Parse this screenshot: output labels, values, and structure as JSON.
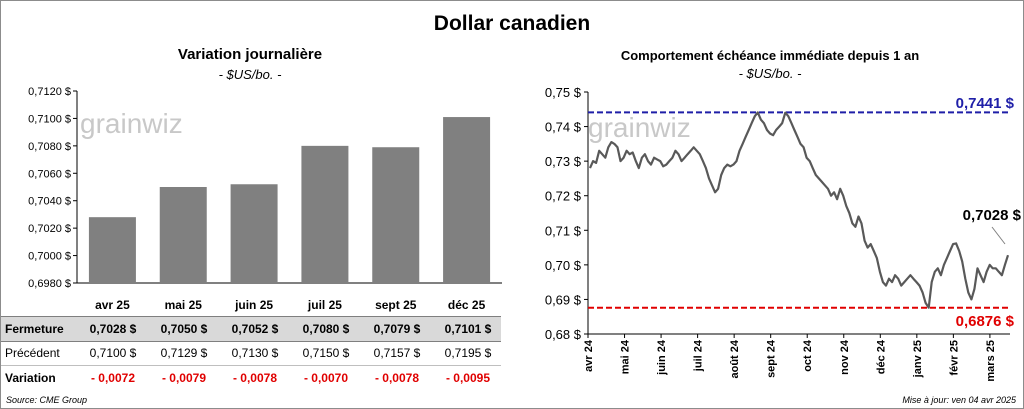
{
  "title": "Dollar canadien",
  "left_chart": {
    "title": "Variation  journalière",
    "unit": "- $US/bo. -",
    "watermark": "grainwiz"
  },
  "right_chart": {
    "title": "Comportement échéance immédiate depuis 1 an",
    "unit": "- $US/bo. -",
    "watermark": "grainwiz",
    "high_label": "0,7441 $",
    "low_label": "0,6876 $",
    "last_label": "0,7028 $"
  },
  "table": {
    "rows": [
      {
        "label": "Fermeture",
        "values": [
          "0,7028  $",
          "0,7050  $",
          "0,7052  $",
          "0,7080  $",
          "0,7079  $",
          "0,7101  $"
        ]
      },
      {
        "label": "Précédent",
        "values": [
          "0,7100  $",
          "0,7129  $",
          "0,7130  $",
          "0,7150  $",
          "0,7157  $",
          "0,7195  $"
        ]
      },
      {
        "label": "Variation",
        "values": [
          "- 0,0072",
          "- 0,0079",
          "- 0,0078",
          "- 0,0070",
          "- 0,0078",
          "- 0,0095"
        ]
      }
    ]
  },
  "footer": {
    "source": "Source: CME Group",
    "updated": "Mise à jour: ven 04 avr 2025"
  },
  "colors": {
    "bar": "#808080",
    "line": "#595959",
    "high_line": "#1f1fa8",
    "low_line": "#e00000",
    "negative": "#e00000"
  },
  "chart_data": [
    {
      "type": "bar",
      "title": "Variation  journalière",
      "categories": [
        "avr 25",
        "mai 25",
        "juin 25",
        "juil 25",
        "sept 25",
        "déc 25"
      ],
      "values": [
        0.7028,
        0.705,
        0.7052,
        0.708,
        0.7079,
        0.7101
      ],
      "ylim": [
        0.698,
        0.712
      ],
      "yticks": [
        0.698,
        0.7,
        0.702,
        0.704,
        0.706,
        0.708,
        0.71,
        0.712
      ],
      "ytick_labels": [
        "0,6980 $",
        "0,7000 $",
        "0,7020 $",
        "0,7040 $",
        "0,7060 $",
        "0,7080 $",
        "0,7100 $",
        "0,7120 $"
      ],
      "grid": false
    },
    {
      "type": "line",
      "title": "Comportement échéance immédiate depuis 1 an",
      "x_labels": [
        "avr 24",
        "mai 24",
        "juin 24",
        "juil 24",
        "août 24",
        "sept 24",
        "oct 24",
        "nov 24",
        "déc 24",
        "janv 25",
        "févr 25",
        "mars 25"
      ],
      "ylim": [
        0.68,
        0.75
      ],
      "yticks": [
        0.68,
        0.69,
        0.7,
        0.71,
        0.72,
        0.73,
        0.74,
        0.75
      ],
      "ytick_labels": [
        "0,68 $",
        "0,69 $",
        "0,70 $",
        "0,71 $",
        "0,72 $",
        "0,73 $",
        "0,74 $",
        "0,75 $"
      ],
      "reference_lines": [
        {
          "value": 0.7441,
          "label": "0,7441 $",
          "color": "#1f1fa8"
        },
        {
          "value": 0.6876,
          "label": "0,6876 $",
          "color": "#e00000"
        }
      ],
      "series": [
        {
          "values": [
            0.728,
            0.73,
            0.7295,
            0.733,
            0.732,
            0.731,
            0.734,
            0.7355,
            0.735,
            0.734,
            0.73,
            0.731,
            0.733,
            0.732,
            0.7325,
            0.73,
            0.728,
            0.731,
            0.732,
            0.73,
            0.729,
            0.731,
            0.7305,
            0.73,
            0.7285,
            0.729,
            0.73,
            0.731,
            0.733,
            0.732,
            0.73,
            0.731,
            0.732,
            0.733,
            0.734,
            0.733,
            0.732,
            0.73,
            0.728,
            0.725,
            0.723,
            0.721,
            0.722,
            0.726,
            0.728,
            0.729,
            0.7285,
            0.729,
            0.73,
            0.733,
            0.735,
            0.737,
            0.739,
            0.741,
            0.743,
            0.7441,
            0.742,
            0.741,
            0.739,
            0.738,
            0.7375,
            0.739,
            0.74,
            0.741,
            0.744,
            0.743,
            0.741,
            0.739,
            0.737,
            0.735,
            0.734,
            0.731,
            0.73,
            0.728,
            0.726,
            0.725,
            0.724,
            0.723,
            0.722,
            0.72,
            0.721,
            0.719,
            0.722,
            0.72,
            0.717,
            0.715,
            0.712,
            0.711,
            0.714,
            0.712,
            0.707,
            0.705,
            0.706,
            0.704,
            0.702,
            0.698,
            0.695,
            0.694,
            0.696,
            0.695,
            0.697,
            0.696,
            0.694,
            0.695,
            0.696,
            0.697,
            0.696,
            0.695,
            0.694,
            0.692,
            0.689,
            0.6876,
            0.695,
            0.698,
            0.699,
            0.697,
            0.7,
            0.702,
            0.704,
            0.706,
            0.7062,
            0.704,
            0.701,
            0.696,
            0.692,
            0.69,
            0.693,
            0.699,
            0.697,
            0.695,
            0.698,
            0.7,
            0.699,
            0.699,
            0.698,
            0.697,
            0.7,
            0.7028
          ]
        }
      ],
      "grid": false
    }
  ]
}
